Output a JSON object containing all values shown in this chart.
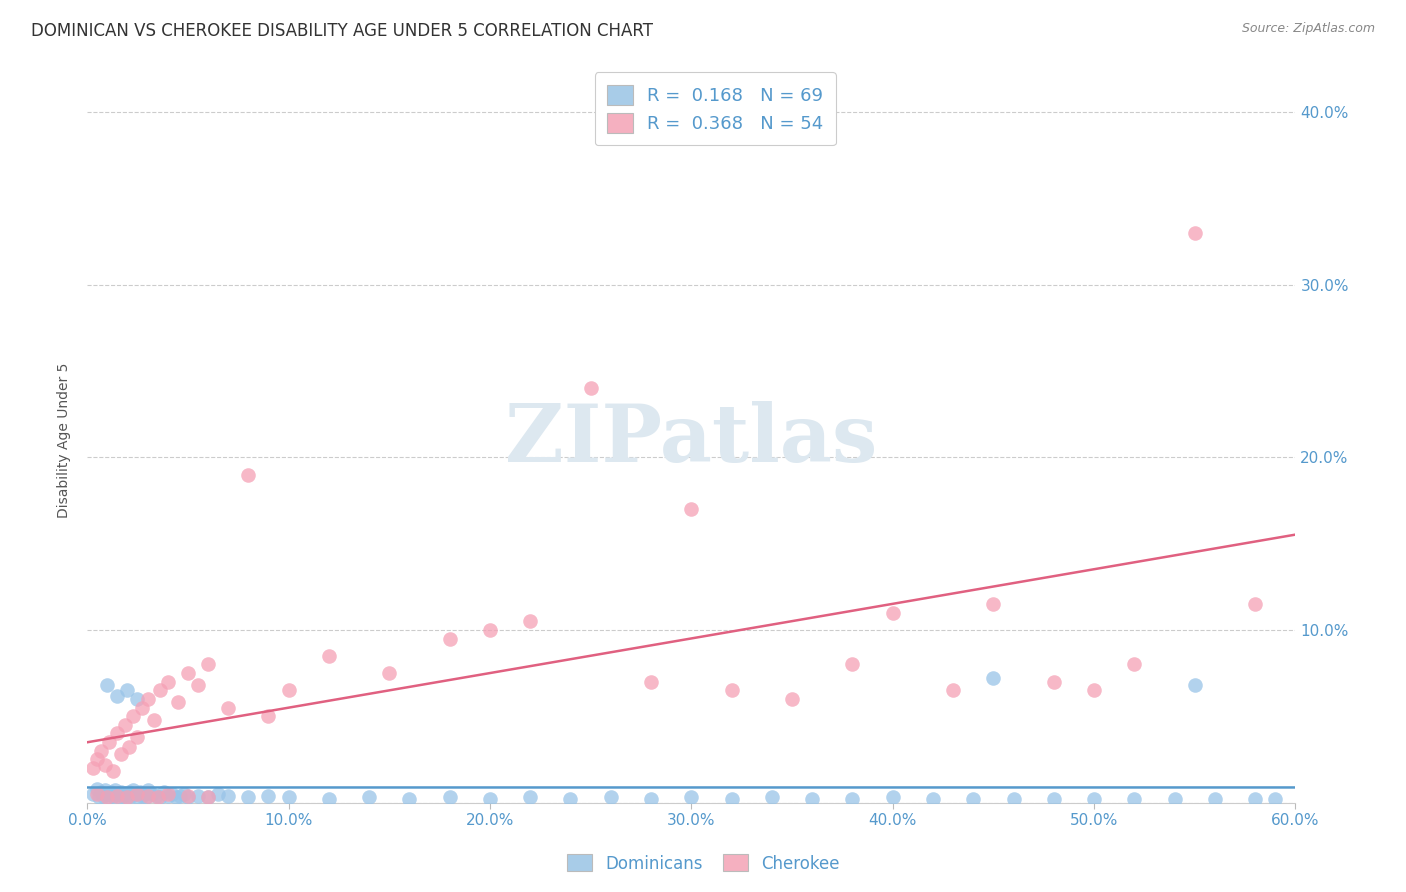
{
  "title": "DOMINICAN VS CHEROKEE DISABILITY AGE UNDER 5 CORRELATION CHART",
  "source": "Source: ZipAtlas.com",
  "ylabel": "Disability Age Under 5",
  "xlim": [
    0.0,
    0.6
  ],
  "ylim": [
    0.0,
    0.42
  ],
  "xticks": [
    0.0,
    0.1,
    0.2,
    0.3,
    0.4,
    0.5,
    0.6
  ],
  "yticks": [
    0.0,
    0.1,
    0.2,
    0.3,
    0.4
  ],
  "legend_bottom": [
    "Dominicans",
    "Cherokee"
  ],
  "blue_scatter_color": "#99c4e8",
  "pink_scatter_color": "#f5a0b5",
  "blue_line_color": "#5599cc",
  "pink_line_color": "#e06080",
  "blue_legend_color": "#a8cce8",
  "pink_legend_color": "#f5b0c0",
  "tick_color": "#5599cc",
  "title_fontsize": 12,
  "axis_label_fontsize": 10,
  "tick_fontsize": 11,
  "watermark_text": "ZIPatlas",
  "dominican_x": [
    0.003,
    0.005,
    0.006,
    0.007,
    0.008,
    0.009,
    0.01,
    0.011,
    0.012,
    0.013,
    0.014,
    0.015,
    0.016,
    0.017,
    0.018,
    0.019,
    0.02,
    0.021,
    0.022,
    0.023,
    0.024,
    0.025,
    0.026,
    0.027,
    0.028,
    0.029,
    0.03,
    0.032,
    0.034,
    0.036,
    0.038,
    0.04,
    0.042,
    0.044,
    0.046,
    0.048,
    0.05,
    0.055,
    0.06,
    0.065,
    0.07,
    0.08,
    0.09,
    0.1,
    0.12,
    0.14,
    0.16,
    0.18,
    0.2,
    0.22,
    0.24,
    0.26,
    0.28,
    0.3,
    0.32,
    0.34,
    0.36,
    0.38,
    0.4,
    0.42,
    0.44,
    0.46,
    0.48,
    0.5,
    0.52,
    0.54,
    0.56,
    0.58,
    0.59
  ],
  "dominican_y": [
    0.005,
    0.008,
    0.003,
    0.006,
    0.004,
    0.007,
    0.005,
    0.003,
    0.006,
    0.004,
    0.007,
    0.005,
    0.003,
    0.006,
    0.004,
    0.005,
    0.003,
    0.006,
    0.004,
    0.007,
    0.005,
    0.003,
    0.006,
    0.004,
    0.005,
    0.003,
    0.007,
    0.005,
    0.004,
    0.003,
    0.006,
    0.004,
    0.005,
    0.003,
    0.004,
    0.005,
    0.003,
    0.004,
    0.003,
    0.005,
    0.004,
    0.003,
    0.004,
    0.003,
    0.002,
    0.003,
    0.002,
    0.003,
    0.002,
    0.003,
    0.002,
    0.003,
    0.002,
    0.003,
    0.002,
    0.003,
    0.002,
    0.002,
    0.003,
    0.002,
    0.002,
    0.002,
    0.002,
    0.002,
    0.002,
    0.002,
    0.002,
    0.002,
    0.002
  ],
  "dominican_high_x": [
    0.01,
    0.015,
    0.02,
    0.025,
    0.45,
    0.55
  ],
  "dominican_high_y": [
    0.068,
    0.062,
    0.065,
    0.06,
    0.072,
    0.068
  ],
  "cherokee_x": [
    0.003,
    0.005,
    0.007,
    0.009,
    0.011,
    0.013,
    0.015,
    0.017,
    0.019,
    0.021,
    0.023,
    0.025,
    0.027,
    0.03,
    0.033,
    0.036,
    0.04,
    0.045,
    0.05,
    0.055,
    0.06,
    0.07,
    0.08,
    0.09,
    0.1,
    0.12,
    0.15,
    0.18,
    0.2,
    0.22,
    0.25,
    0.28,
    0.3,
    0.32,
    0.35,
    0.38,
    0.4,
    0.43,
    0.45,
    0.48,
    0.5,
    0.52,
    0.55,
    0.58,
    0.005,
    0.01,
    0.015,
    0.02,
    0.025,
    0.03,
    0.035,
    0.04,
    0.05,
    0.06
  ],
  "cherokee_y": [
    0.02,
    0.025,
    0.03,
    0.022,
    0.035,
    0.018,
    0.04,
    0.028,
    0.045,
    0.032,
    0.05,
    0.038,
    0.055,
    0.06,
    0.048,
    0.065,
    0.07,
    0.058,
    0.075,
    0.068,
    0.08,
    0.055,
    0.19,
    0.05,
    0.065,
    0.085,
    0.075,
    0.095,
    0.1,
    0.105,
    0.24,
    0.07,
    0.17,
    0.065,
    0.06,
    0.08,
    0.11,
    0.065,
    0.115,
    0.07,
    0.065,
    0.08,
    0.33,
    0.115,
    0.005,
    0.003,
    0.004,
    0.003,
    0.005,
    0.004,
    0.003,
    0.005,
    0.004,
    0.003
  ]
}
